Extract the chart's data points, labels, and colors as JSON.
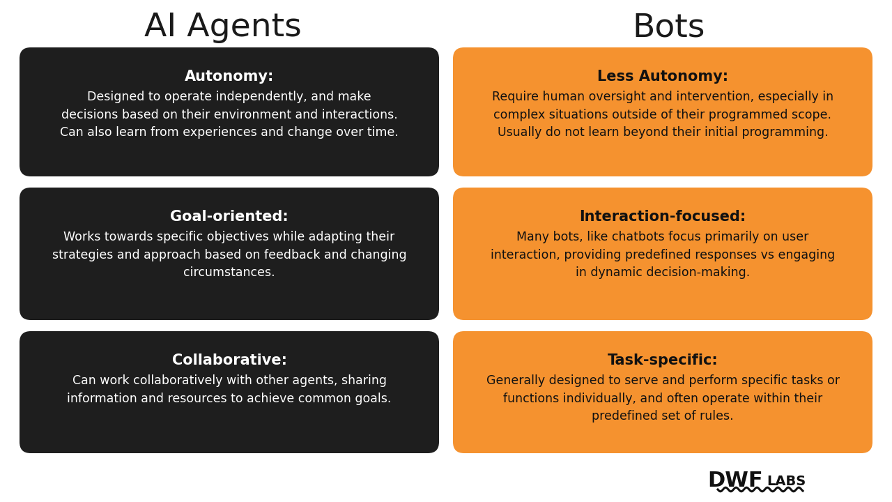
{
  "bg_color": "#ffffff",
  "left_title": "AI Agents",
  "right_title": "Bots",
  "title_fontsize": 34,
  "title_color": "#1a1a1a",
  "left_box_color": "#1e1e1e",
  "right_box_color": "#f5922f",
  "left_text_color": "#ffffff",
  "right_text_color": "#111111",
  "header_fontsize": 15,
  "body_fontsize": 12.5,
  "cards": [
    {
      "left_header": "Autonomy:",
      "left_body": "Designed to operate independently, and make\ndecisions based on their environment and interactions.\nCan also learn from experiences and change over time.",
      "right_header": "Less Autonomy:",
      "right_body": "Require human oversight and intervention, especially in\ncomplex situations outside of their programmed scope.\nUsually do not learn beyond their initial programming."
    },
    {
      "left_header": "Goal-oriented:",
      "left_body": "Works towards specific objectives while adapting their\nstrategies and approach based on feedback and changing\ncircumstances.",
      "right_header": "Interaction-focused:",
      "right_body": "Many bots, like chatbots focus primarily on user\ninteraction, providing predefined responses vs engaging\nin dynamic decision-making."
    },
    {
      "left_header": "Collaborative:",
      "left_body": "Can work collaboratively with other agents, sharing\ninformation and resources to achieve common goals.",
      "right_header": "Task-specific:",
      "right_body": "Generally designed to serve and perform specific tasks or\nfunctions individually, and often operate within their\npredefined set of rules."
    }
  ]
}
